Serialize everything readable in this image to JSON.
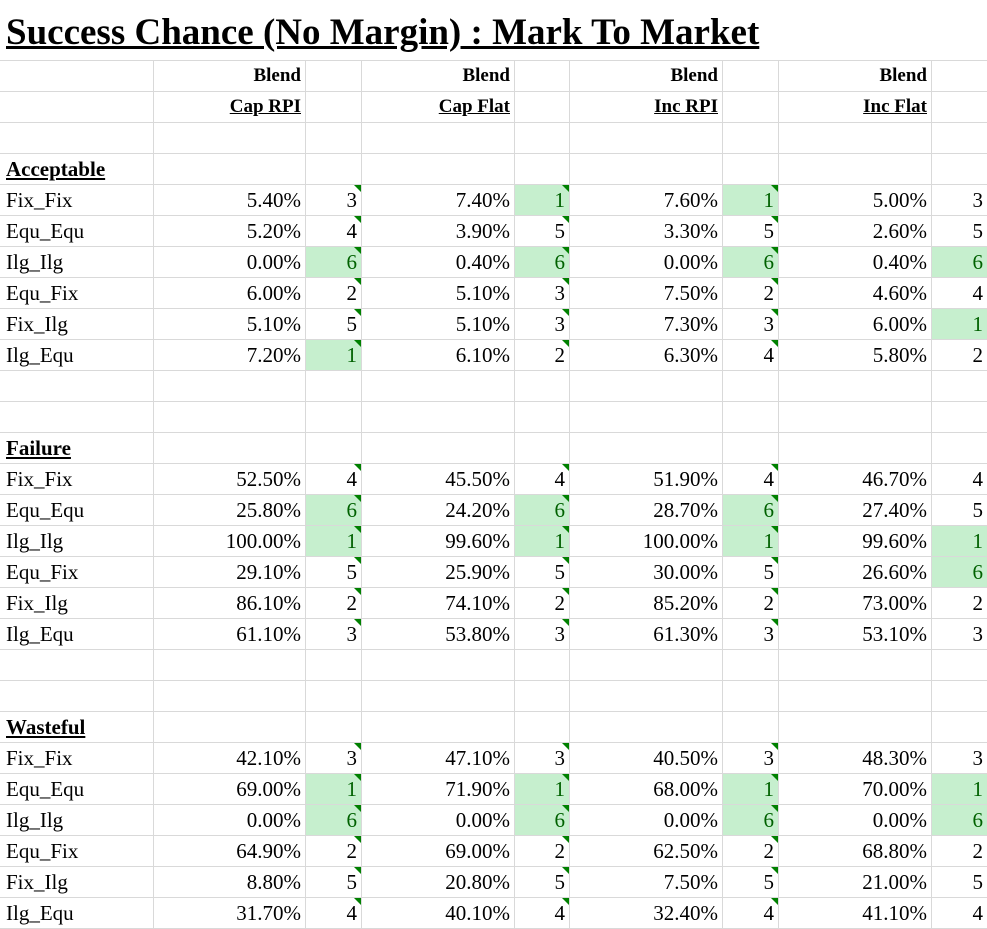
{
  "title": "Success Chance (No Margin) : Mark To Market",
  "columns": [
    {
      "line1": "Blend",
      "line2": "Cap RPI"
    },
    {
      "line1": "Blend",
      "line2": "Cap Flat"
    },
    {
      "line1": "Blend",
      "line2": "Inc RPI"
    },
    {
      "line1": "Blend",
      "line2": "Inc Flat"
    }
  ],
  "highlight_colors": {
    "fill": "#c6efce",
    "text": "#006100",
    "marker": "#008000"
  },
  "sections": [
    {
      "name": "Acceptable",
      "rows": [
        {
          "label": "Fix_Fix",
          "cells": [
            {
              "pct": "5.40%",
              "rank": "3",
              "best": false
            },
            {
              "pct": "7.40%",
              "rank": "1",
              "best": true
            },
            {
              "pct": "7.60%",
              "rank": "1",
              "best": true
            },
            {
              "pct": "5.00%",
              "rank": "3",
              "best": false
            }
          ]
        },
        {
          "label": "Equ_Equ",
          "cells": [
            {
              "pct": "5.20%",
              "rank": "4",
              "best": false
            },
            {
              "pct": "3.90%",
              "rank": "5",
              "best": false
            },
            {
              "pct": "3.30%",
              "rank": "5",
              "best": false
            },
            {
              "pct": "2.60%",
              "rank": "5",
              "best": false
            }
          ]
        },
        {
          "label": "Ilg_Ilg",
          "cells": [
            {
              "pct": "0.00%",
              "rank": "6",
              "best": true
            },
            {
              "pct": "0.40%",
              "rank": "6",
              "best": true
            },
            {
              "pct": "0.00%",
              "rank": "6",
              "best": true
            },
            {
              "pct": "0.40%",
              "rank": "6",
              "best": true
            }
          ]
        },
        {
          "label": "Equ_Fix",
          "cells": [
            {
              "pct": "6.00%",
              "rank": "2",
              "best": false
            },
            {
              "pct": "5.10%",
              "rank": "3",
              "best": false
            },
            {
              "pct": "7.50%",
              "rank": "2",
              "best": false
            },
            {
              "pct": "4.60%",
              "rank": "4",
              "best": false
            }
          ]
        },
        {
          "label": "Fix_Ilg",
          "cells": [
            {
              "pct": "5.10%",
              "rank": "5",
              "best": false
            },
            {
              "pct": "5.10%",
              "rank": "3",
              "best": false
            },
            {
              "pct": "7.30%",
              "rank": "3",
              "best": false
            },
            {
              "pct": "6.00%",
              "rank": "1",
              "best": true
            }
          ]
        },
        {
          "label": "Ilg_Equ",
          "cells": [
            {
              "pct": "7.20%",
              "rank": "1",
              "best": true
            },
            {
              "pct": "6.10%",
              "rank": "2",
              "best": false
            },
            {
              "pct": "6.30%",
              "rank": "4",
              "best": false
            },
            {
              "pct": "5.80%",
              "rank": "2",
              "best": false
            }
          ]
        }
      ]
    },
    {
      "name": "Failure",
      "rows": [
        {
          "label": "Fix_Fix",
          "cells": [
            {
              "pct": "52.50%",
              "rank": "4",
              "best": false
            },
            {
              "pct": "45.50%",
              "rank": "4",
              "best": false
            },
            {
              "pct": "51.90%",
              "rank": "4",
              "best": false
            },
            {
              "pct": "46.70%",
              "rank": "4",
              "best": false
            }
          ]
        },
        {
          "label": "Equ_Equ",
          "cells": [
            {
              "pct": "25.80%",
              "rank": "6",
              "best": true
            },
            {
              "pct": "24.20%",
              "rank": "6",
              "best": true
            },
            {
              "pct": "28.70%",
              "rank": "6",
              "best": true
            },
            {
              "pct": "27.40%",
              "rank": "5",
              "best": false
            }
          ]
        },
        {
          "label": "Ilg_Ilg",
          "cells": [
            {
              "pct": "100.00%",
              "rank": "1",
              "best": true
            },
            {
              "pct": "99.60%",
              "rank": "1",
              "best": true
            },
            {
              "pct": "100.00%",
              "rank": "1",
              "best": true
            },
            {
              "pct": "99.60%",
              "rank": "1",
              "best": true
            }
          ]
        },
        {
          "label": "Equ_Fix",
          "cells": [
            {
              "pct": "29.10%",
              "rank": "5",
              "best": false
            },
            {
              "pct": "25.90%",
              "rank": "5",
              "best": false
            },
            {
              "pct": "30.00%",
              "rank": "5",
              "best": false
            },
            {
              "pct": "26.60%",
              "rank": "6",
              "best": true
            }
          ]
        },
        {
          "label": "Fix_Ilg",
          "cells": [
            {
              "pct": "86.10%",
              "rank": "2",
              "best": false
            },
            {
              "pct": "74.10%",
              "rank": "2",
              "best": false
            },
            {
              "pct": "85.20%",
              "rank": "2",
              "best": false
            },
            {
              "pct": "73.00%",
              "rank": "2",
              "best": false
            }
          ]
        },
        {
          "label": "Ilg_Equ",
          "cells": [
            {
              "pct": "61.10%",
              "rank": "3",
              "best": false
            },
            {
              "pct": "53.80%",
              "rank": "3",
              "best": false
            },
            {
              "pct": "61.30%",
              "rank": "3",
              "best": false
            },
            {
              "pct": "53.10%",
              "rank": "3",
              "best": false
            }
          ]
        }
      ]
    },
    {
      "name": "Wasteful",
      "rows": [
        {
          "label": "Fix_Fix",
          "cells": [
            {
              "pct": "42.10%",
              "rank": "3",
              "best": false
            },
            {
              "pct": "47.10%",
              "rank": "3",
              "best": false
            },
            {
              "pct": "40.50%",
              "rank": "3",
              "best": false
            },
            {
              "pct": "48.30%",
              "rank": "3",
              "best": false
            }
          ]
        },
        {
          "label": "Equ_Equ",
          "cells": [
            {
              "pct": "69.00%",
              "rank": "1",
              "best": true
            },
            {
              "pct": "71.90%",
              "rank": "1",
              "best": true
            },
            {
              "pct": "68.00%",
              "rank": "1",
              "best": true
            },
            {
              "pct": "70.00%",
              "rank": "1",
              "best": true
            }
          ]
        },
        {
          "label": "Ilg_Ilg",
          "cells": [
            {
              "pct": "0.00%",
              "rank": "6",
              "best": true
            },
            {
              "pct": "0.00%",
              "rank": "6",
              "best": true
            },
            {
              "pct": "0.00%",
              "rank": "6",
              "best": true
            },
            {
              "pct": "0.00%",
              "rank": "6",
              "best": true
            }
          ]
        },
        {
          "label": "Equ_Fix",
          "cells": [
            {
              "pct": "64.90%",
              "rank": "2",
              "best": false
            },
            {
              "pct": "69.00%",
              "rank": "2",
              "best": false
            },
            {
              "pct": "62.50%",
              "rank": "2",
              "best": false
            },
            {
              "pct": "68.80%",
              "rank": "2",
              "best": false
            }
          ]
        },
        {
          "label": "Fix_Ilg",
          "cells": [
            {
              "pct": "8.80%",
              "rank": "5",
              "best": false
            },
            {
              "pct": "20.80%",
              "rank": "5",
              "best": false
            },
            {
              "pct": "7.50%",
              "rank": "5",
              "best": false
            },
            {
              "pct": "21.00%",
              "rank": "5",
              "best": false
            }
          ]
        },
        {
          "label": "Ilg_Equ",
          "cells": [
            {
              "pct": "31.70%",
              "rank": "4",
              "best": false
            },
            {
              "pct": "40.10%",
              "rank": "4",
              "best": false
            },
            {
              "pct": "32.40%",
              "rank": "4",
              "best": false
            },
            {
              "pct": "41.10%",
              "rank": "4",
              "best": false
            }
          ]
        }
      ]
    }
  ]
}
